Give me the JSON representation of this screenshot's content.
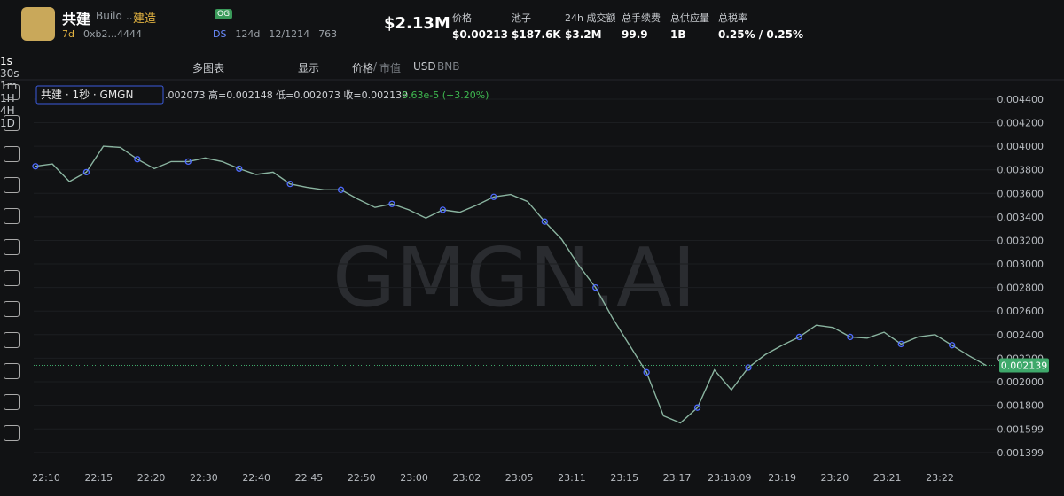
{
  "header": {
    "symbol": "共建",
    "name": "Build ...",
    "name_cn": "建造",
    "badge": "OG",
    "age": "7d",
    "address": "0xb2...4444",
    "ds": "DS",
    "ds_age": "124d",
    "holders": "12/1214",
    "views": "763",
    "market_cap": "$2.13M",
    "stats": [
      {
        "label": "价格",
        "value": "$0.00213"
      },
      {
        "label": "池子",
        "value": "$187.6K"
      },
      {
        "label": "24h 成交额",
        "value": "$3.2M"
      },
      {
        "label": "总手续费",
        "value": "99.9"
      },
      {
        "label": "总供应量",
        "value": "1B"
      },
      {
        "label": "总税率",
        "value": "0.25% / 0.25%"
      }
    ]
  },
  "toolbar": {
    "intervals": [
      "1s",
      "30s",
      "1m",
      "1H",
      "4H",
      "1D"
    ],
    "multi_chart": "多图表",
    "display": "显示",
    "price": "价格",
    "separator": "/",
    "mcap": "市值",
    "usd": "USD",
    "bnb": "BNB"
  },
  "chart_data": {
    "type": "line",
    "legend_title": "共建 · 1秒 · GMGN",
    "ohlc": ".002073 高=0.002148 低=0.002073 收=0.002139",
    "change": "6.63e-5 (+3.20%)",
    "watermark": "GMGN.AI",
    "color": "#8ab4a0",
    "values": [
      0.00383,
      0.00385,
      0.0037,
      0.00378,
      0.004,
      0.00399,
      0.00389,
      0.00381,
      0.00387,
      0.00387,
      0.0039,
      0.00387,
      0.00381,
      0.00376,
      0.00378,
      0.00368,
      0.00365,
      0.00363,
      0.00363,
      0.00355,
      0.00348,
      0.00351,
      0.00346,
      0.00339,
      0.00346,
      0.00344,
      0.0035,
      0.00357,
      0.00359,
      0.00353,
      0.00336,
      0.00321,
      0.00299,
      0.0028,
      0.00254,
      0.00231,
      0.00208,
      0.00171,
      0.00165,
      0.00178,
      0.0021,
      0.00193,
      0.00212,
      0.00223,
      0.00231,
      0.00238,
      0.00248,
      0.00246,
      0.00238,
      0.00237,
      0.00242,
      0.00232,
      0.00238,
      0.0024,
      0.00231,
      0.00222,
      0.002139
    ],
    "x_labels": [
      "22:10",
      "22:15",
      "22:20",
      "22:30",
      "22:40",
      "22:45",
      "22:50",
      "23:00",
      "23:02",
      "23:05",
      "23:11",
      "23:15",
      "23:17",
      "23:18:09",
      "23:19",
      "23:20",
      "23:21",
      "23:22"
    ],
    "ylim": [
      0.0013,
      0.00452
    ],
    "yticks": [
      {
        "value": 0.0044,
        "label": "0.004400"
      },
      {
        "value": 0.0042,
        "label": "0.004200"
      },
      {
        "value": 0.004,
        "label": "0.004000"
      },
      {
        "value": 0.0038,
        "label": "0.003800"
      },
      {
        "value": 0.0036,
        "label": "0.003600"
      },
      {
        "value": 0.0034,
        "label": "0.003400"
      },
      {
        "value": 0.0032,
        "label": "0.003200"
      },
      {
        "value": 0.003,
        "label": "0.003000"
      },
      {
        "value": 0.0028,
        "label": "0.002800"
      },
      {
        "value": 0.0026,
        "label": "0.002600"
      },
      {
        "value": 0.0024,
        "label": "0.002400"
      },
      {
        "value": 0.0022,
        "label": "0.002200"
      },
      {
        "value": 0.002,
        "label": "0.002000"
      },
      {
        "value": 0.0018,
        "label": "0.001800"
      },
      {
        "value": 0.001599,
        "label": "0.001599"
      },
      {
        "value": 0.001399,
        "label": "0.001399"
      }
    ],
    "last_price": {
      "value": 0.002139,
      "label": "0.002139"
    },
    "grid": true
  }
}
